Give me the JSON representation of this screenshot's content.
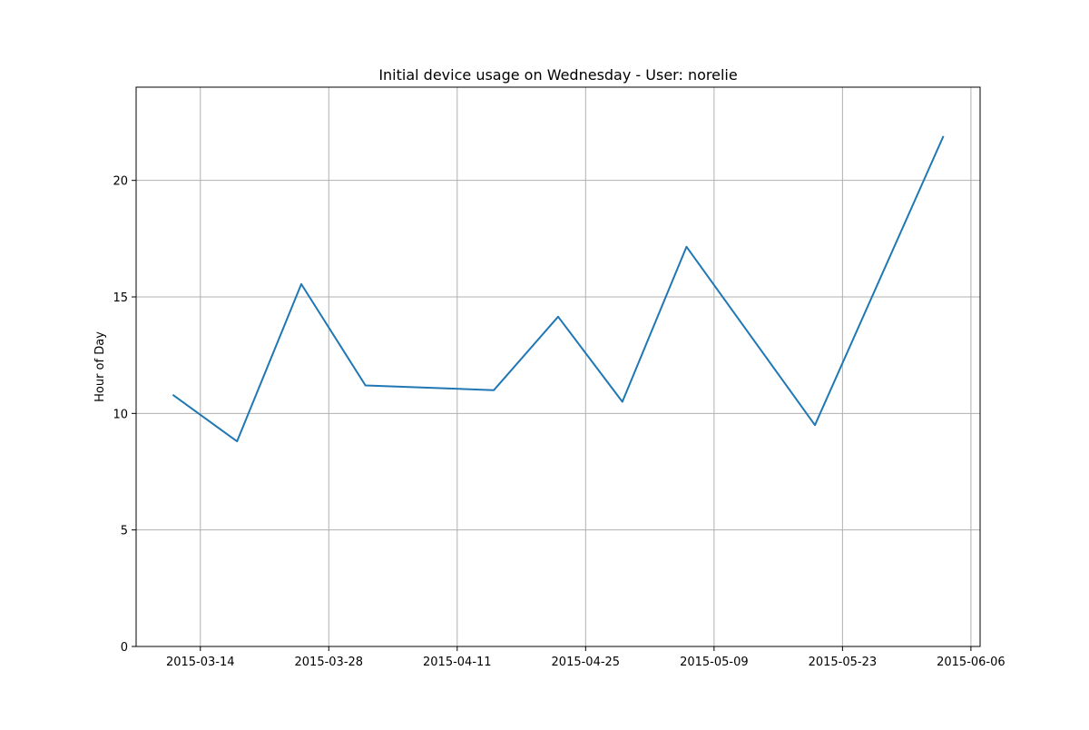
{
  "chart_data": {
    "type": "line",
    "title": "Initial device usage on Wednesday - User: norelie",
    "xlabel": "",
    "ylabel": "Hour of Day",
    "x_ticks": [
      "2015-03-14",
      "2015-03-28",
      "2015-04-11",
      "2015-04-25",
      "2015-05-09",
      "2015-05-23",
      "2015-06-06"
    ],
    "y_ticks": [
      0,
      5,
      10,
      15,
      20
    ],
    "xlim": [
      "2015-03-07",
      "2015-06-07"
    ],
    "ylim": [
      0,
      24
    ],
    "grid": true,
    "line_color": "#1f77b4",
    "series": [
      {
        "x": [
          "2015-03-11",
          "2015-03-18",
          "2015-03-25",
          "2015-04-01",
          "2015-04-15",
          "2015-04-22",
          "2015-04-29",
          "2015-05-06",
          "2015-05-20",
          "2015-06-03"
        ],
        "values": [
          10.8,
          8.8,
          15.55,
          11.2,
          11.0,
          14.15,
          10.5,
          17.15,
          9.5,
          21.9
        ]
      }
    ]
  }
}
